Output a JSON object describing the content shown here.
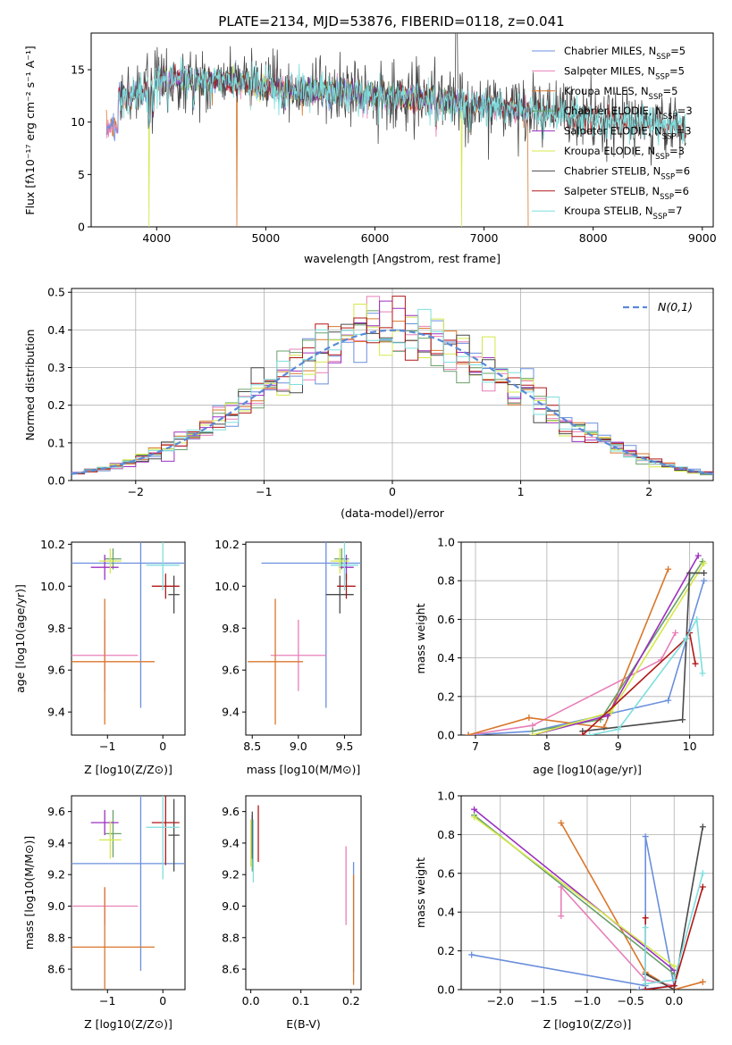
{
  "figure_title": "PLATE=2134, MJD=53876, FIBERID=0118, z=0.041",
  "colors": {
    "Chabrier MILES": "#6a8fdc",
    "Salpeter MILES": "#e87fb8",
    "Kroupa MILES": "#d9772c",
    "Chabrier ELODIE": "#6aa06a",
    "Salpeter ELODIE": "#9b30c0",
    "Kroupa ELODIE": "#d4e84a",
    "Chabrier STELIB": "#4a4a4a",
    "Salpeter STELIB": "#b01818",
    "Kroupa STELIB": "#7fdede",
    "normal_curve": "#5b8ad6"
  },
  "chart_data": [
    {
      "id": "spectrum",
      "type": "line",
      "title": "PLATE=2134, MJD=53876, FIBERID=0118, z=0.041",
      "xlabel": "wavelength [Angstrom, rest frame]",
      "ylabel": "Flux [fλ10⁻¹⁷ erg cm⁻² s⁻¹ A⁻¹]",
      "xlim": [
        3400,
        9100
      ],
      "ylim": [
        0,
        18.5
      ],
      "xticks": [
        4000,
        5000,
        6000,
        7000,
        8000,
        9000
      ],
      "yticks": [
        0,
        5,
        10,
        15
      ],
      "legend_position": "top-right",
      "legend": [
        {
          "label": "Chabrier MILES, N",
          "sub": "SSP",
          "suffix": "=5"
        },
        {
          "label": "Salpeter MILES, N",
          "sub": "SSP",
          "suffix": "=5"
        },
        {
          "label": "Kroupa MILES, N",
          "sub": "SSP",
          "suffix": "=5"
        },
        {
          "label": "Chabrier ELODIE, N",
          "sub": "SSP",
          "suffix": "=3"
        },
        {
          "label": "Salpeter ELODIE, N",
          "sub": "SSP",
          "suffix": "=3"
        },
        {
          "label": "Kroupa ELODIE, N",
          "sub": "SSP",
          "suffix": "=3"
        },
        {
          "label": "Chabrier STELIB, N",
          "sub": "SSP",
          "suffix": "=6"
        },
        {
          "label": "Salpeter STELIB, N",
          "sub": "SSP",
          "suffix": "=6"
        },
        {
          "label": "Kroupa STELIB, N",
          "sub": "SSP",
          "suffix": "=7"
        }
      ],
      "continuum": [
        [
          3650,
          12.5
        ],
        [
          3750,
          12.2
        ],
        [
          3900,
          13.2
        ],
        [
          4000,
          14.0
        ],
        [
          4200,
          14.2
        ],
        [
          4500,
          14.0
        ],
        [
          4800,
          13.8
        ],
        [
          5000,
          13.4
        ],
        [
          5500,
          13.0
        ],
        [
          6000,
          12.6
        ],
        [
          6500,
          12.2
        ],
        [
          7000,
          11.6
        ],
        [
          7500,
          11.0
        ],
        [
          8000,
          10.3
        ],
        [
          8500,
          9.8
        ],
        [
          8850,
          9.5
        ]
      ],
      "range_by_library": {
        "MILES": [
          3540,
          7410
        ],
        "ELODIE": [
          3900,
          6800
        ],
        "STELIB": [
          3650,
          8850
        ]
      }
    },
    {
      "id": "residuals",
      "type": "histogram",
      "xlabel": "(data-model)/error",
      "ylabel": "Normed distribution",
      "xlim": [
        -2.5,
        2.5
      ],
      "ylim": [
        0,
        0.51
      ],
      "xticks": [
        -2,
        -1,
        0,
        1,
        2
      ],
      "yticks": [
        0.0,
        0.1,
        0.2,
        0.3,
        0.4,
        0.5
      ],
      "legend_position": "top-right",
      "legend_label": "N(0,1)",
      "bin_width": 0.1
    },
    {
      "id": "age_vs_Z",
      "type": "scatter",
      "xlabel": "Z [log10(Z/Z⊙)]",
      "ylabel": "age  [log10(age/yr)]",
      "xlim": [
        -1.65,
        0.4
      ],
      "ylim": [
        9.29,
        10.21
      ],
      "xticks": [
        -1,
        0
      ],
      "yticks": [
        9.4,
        9.6,
        9.8,
        10.0,
        10.2
      ],
      "points": [
        {
          "model": "Chabrier MILES",
          "x": -0.4,
          "xerr": 1.55,
          "y": 10.11,
          "yerr": 0.69
        },
        {
          "model": "Salpeter MILES",
          "x": -1.05,
          "xerr": 0.6,
          "y": 9.67,
          "yerr": 0.17
        },
        {
          "model": "Kroupa MILES",
          "x": -1.05,
          "xerr": 0.9,
          "y": 9.64,
          "yerr": 0.3
        },
        {
          "model": "Chabrier ELODIE",
          "x": -0.9,
          "xerr": 0.15,
          "y": 10.13,
          "yerr": 0.05
        },
        {
          "model": "Salpeter ELODIE",
          "x": -1.05,
          "xerr": 0.25,
          "y": 10.09,
          "yerr": 0.06
        },
        {
          "model": "Kroupa ELODIE",
          "x": -0.95,
          "xerr": 0.2,
          "y": 10.12,
          "yerr": 0.06
        },
        {
          "model": "Chabrier STELIB",
          "x": 0.2,
          "xerr": 0.1,
          "y": 9.96,
          "yerr": 0.09
        },
        {
          "model": "Salpeter STELIB",
          "x": 0.05,
          "xerr": 0.25,
          "y": 10.0,
          "yerr": 0.06
        },
        {
          "model": "Kroupa STELIB",
          "x": 0.0,
          "xerr": 0.3,
          "y": 10.1,
          "yerr": 0.12
        }
      ]
    },
    {
      "id": "age_vs_mass",
      "type": "scatter",
      "xlabel": "mass [log10(M/M⊙)]",
      "ylabel": "",
      "xlim": [
        8.43,
        9.68
      ],
      "ylim": [
        9.29,
        10.21
      ],
      "xticks": [
        8.5,
        9.0,
        9.5
      ],
      "yticks": [
        9.4,
        9.6,
        9.8,
        10.0,
        10.2
      ],
      "points": [
        {
          "model": "Chabrier MILES",
          "x": 9.3,
          "xerr": 0.7,
          "y": 10.11,
          "yerr": 0.69
        },
        {
          "model": "Salpeter MILES",
          "x": 9.0,
          "xerr": 0.3,
          "y": 9.67,
          "yerr": 0.17
        },
        {
          "model": "Kroupa MILES",
          "x": 8.75,
          "xerr": 0.3,
          "y": 9.64,
          "yerr": 0.3
        },
        {
          "model": "Chabrier ELODIE",
          "x": 9.47,
          "xerr": 0.08,
          "y": 10.13,
          "yerr": 0.05
        },
        {
          "model": "Salpeter ELODIE",
          "x": 9.52,
          "xerr": 0.08,
          "y": 10.09,
          "yerr": 0.06
        },
        {
          "model": "Kroupa ELODIE",
          "x": 9.45,
          "xerr": 0.1,
          "y": 10.12,
          "yerr": 0.06
        },
        {
          "model": "Chabrier STELIB",
          "x": 9.45,
          "xerr": 0.15,
          "y": 9.96,
          "yerr": 0.09
        },
        {
          "model": "Salpeter STELIB",
          "x": 9.52,
          "xerr": 0.1,
          "y": 10.0,
          "yerr": 0.06
        },
        {
          "model": "Kroupa STELIB",
          "x": 9.5,
          "xerr": 0.15,
          "y": 10.1,
          "yerr": 0.12
        }
      ]
    },
    {
      "id": "massweight_vs_age",
      "type": "line",
      "xlabel": "age  [log10(age/yr)]",
      "ylabel": "mass weight",
      "xlim": [
        6.8,
        10.33
      ],
      "ylim": [
        0,
        1.0
      ],
      "xticks": [
        7,
        8,
        9,
        10
      ],
      "yticks": [
        0.0,
        0.2,
        0.4,
        0.6,
        0.8,
        1.0
      ],
      "series": [
        {
          "model": "Chabrier MILES",
          "x": [
            6.9,
            7.8,
            9.7,
            10.2
          ],
          "y": [
            0.0,
            0.02,
            0.18,
            0.8
          ]
        },
        {
          "model": "Salpeter MILES",
          "x": [
            6.9,
            7.8,
            9.6,
            9.8
          ],
          "y": [
            0.0,
            0.05,
            0.39,
            0.53
          ]
        },
        {
          "model": "Kroupa MILES",
          "x": [
            6.9,
            7.75,
            8.8,
            9.7
          ],
          "y": [
            0.0,
            0.09,
            0.04,
            0.86
          ]
        },
        {
          "model": "Chabrier ELODIE",
          "x": [
            7.8,
            8.75,
            10.18
          ],
          "y": [
            0.02,
            0.08,
            0.9
          ]
        },
        {
          "model": "Salpeter ELODIE",
          "x": [
            7.8,
            8.85,
            10.12
          ],
          "y": [
            0.0,
            0.1,
            0.93
          ]
        },
        {
          "model": "Kroupa ELODIE",
          "x": [
            7.8,
            8.9,
            10.2
          ],
          "y": [
            0.0,
            0.12,
            0.89
          ]
        },
        {
          "model": "Chabrier STELIB",
          "x": [
            8.5,
            9.9,
            10.0,
            10.2
          ],
          "y": [
            0.02,
            0.08,
            0.84,
            0.84
          ]
        },
        {
          "model": "Salpeter STELIB",
          "x": [
            8.5,
            9.95,
            10.0,
            10.08
          ],
          "y": [
            0.0,
            0.5,
            0.53,
            0.37
          ]
        },
        {
          "model": "Kroupa STELIB",
          "x": [
            8.6,
            9.0,
            9.95,
            10.1,
            10.18
          ],
          "y": [
            0.0,
            0.03,
            0.5,
            0.6,
            0.32
          ]
        }
      ]
    },
    {
      "id": "mass_vs_Z",
      "type": "scatter",
      "xlabel": "Z [log10(Z/Z⊙)]",
      "ylabel": "mass [log10(M/M⊙)]",
      "xlim": [
        -1.65,
        0.4
      ],
      "ylim": [
        8.47,
        9.7
      ],
      "xticks": [
        -1,
        0
      ],
      "yticks": [
        8.6,
        8.8,
        9.0,
        9.2,
        9.4,
        9.6
      ],
      "points": [
        {
          "model": "Chabrier MILES",
          "x": -0.4,
          "xerr": 1.55,
          "y": 9.27,
          "yerr": 0.68
        },
        {
          "model": "Salpeter MILES",
          "x": -1.05,
          "xerr": 0.6,
          "y": 9.0,
          "yerr": 0.12
        },
        {
          "model": "Kroupa MILES",
          "x": -1.05,
          "xerr": 0.9,
          "y": 8.74,
          "yerr": 0.38
        },
        {
          "model": "Chabrier ELODIE",
          "x": -0.9,
          "xerr": 0.15,
          "y": 9.46,
          "yerr": 0.15
        },
        {
          "model": "Salpeter ELODIE",
          "x": -1.05,
          "xerr": 0.25,
          "y": 9.53,
          "yerr": 0.08
        },
        {
          "model": "Kroupa ELODIE",
          "x": -0.95,
          "xerr": 0.2,
          "y": 9.42,
          "yerr": 0.12
        },
        {
          "model": "Chabrier STELIB",
          "x": 0.2,
          "xerr": 0.1,
          "y": 9.45,
          "yerr": 0.23
        },
        {
          "model": "Salpeter STELIB",
          "x": 0.05,
          "xerr": 0.25,
          "y": 9.53,
          "yerr": 0.27
        },
        {
          "model": "Kroupa STELIB",
          "x": 0.0,
          "xerr": 0.3,
          "y": 9.5,
          "yerr": 0.33
        }
      ]
    },
    {
      "id": "mass_vs_EBV",
      "type": "scatter",
      "xlabel": "E(B-V)",
      "ylabel": "",
      "xlim": [
        -0.01,
        0.22
      ],
      "ylim": [
        8.47,
        9.7
      ],
      "xticks": [
        0.0,
        0.1,
        0.2
      ],
      "yticks": [
        8.6,
        8.8,
        9.0,
        9.2,
        9.4,
        9.6
      ],
      "points": [
        {
          "model": "Chabrier MILES",
          "x": 0.205,
          "xerr": 0.0,
          "y": 8.93,
          "yerr": 0.35
        },
        {
          "model": "Salpeter MILES",
          "x": 0.19,
          "xerr": 0.0,
          "y": 9.13,
          "yerr": 0.25
        },
        {
          "model": "Kroupa MILES",
          "x": 0.205,
          "xerr": 0.0,
          "y": 8.85,
          "yerr": 0.35
        },
        {
          "model": "Chabrier ELODIE",
          "x": 0.003,
          "xerr": 0.0,
          "y": 9.4,
          "yerr": 0.18
        },
        {
          "model": "Salpeter ELODIE",
          "x": 0.003,
          "xerr": 0.0,
          "y": 9.45,
          "yerr": 0.12
        },
        {
          "model": "Kroupa ELODIE",
          "x": 0.0,
          "xerr": 0.0,
          "y": 9.4,
          "yerr": 0.15
        },
        {
          "model": "Chabrier STELIB",
          "x": 0.003,
          "xerr": 0.0,
          "y": 9.45,
          "yerr": 0.15
        },
        {
          "model": "Salpeter STELIB",
          "x": 0.015,
          "xerr": 0.0,
          "y": 9.46,
          "yerr": 0.18
        },
        {
          "model": "Kroupa STELIB",
          "x": 0.005,
          "xerr": 0.0,
          "y": 9.35,
          "yerr": 0.2
        }
      ]
    },
    {
      "id": "massweight_vs_Z",
      "type": "line",
      "xlabel": "Z [log10(Z/Z⊙)]",
      "ylabel": "mass weight",
      "xlim": [
        -2.45,
        0.45
      ],
      "ylim": [
        0,
        1.0
      ],
      "xticks": [
        -2.0,
        -1.5,
        -1.0,
        -0.5,
        0.0
      ],
      "yticks": [
        0.0,
        0.2,
        0.4,
        0.6,
        0.8,
        1.0
      ],
      "series": [
        {
          "model": "Chabrier MILES",
          "x": [
            -2.33,
            -0.33,
            -0.33,
            0.0,
            -0.4
          ],
          "y": [
            0.18,
            0.02,
            0.79,
            0.02,
            0.0
          ]
        },
        {
          "model": "Salpeter MILES",
          "x": [
            -1.3,
            -1.3,
            -0.33,
            0.0
          ],
          "y": [
            0.38,
            0.53,
            0.05,
            0.02
          ]
        },
        {
          "model": "Kroupa MILES",
          "x": [
            -1.3,
            -0.33,
            0.0,
            0.33
          ],
          "y": [
            0.86,
            0.09,
            0.0,
            0.04
          ]
        },
        {
          "model": "Chabrier ELODIE",
          "x": [
            -2.3,
            0.0
          ],
          "y": [
            0.9,
            0.08
          ]
        },
        {
          "model": "Salpeter ELODIE",
          "x": [
            -2.3,
            0.0
          ],
          "y": [
            0.93,
            0.1
          ]
        },
        {
          "model": "Kroupa ELODIE",
          "x": [
            -2.3,
            0.0
          ],
          "y": [
            0.89,
            0.12
          ]
        },
        {
          "model": "Chabrier STELIB",
          "x": [
            -0.33,
            0.0,
            0.33
          ],
          "y": [
            0.08,
            0.0,
            0.84
          ]
        },
        {
          "model": "Salpeter STELIB",
          "x": [
            -0.33,
            -0.33,
            0.0,
            0.33
          ],
          "y": [
            0.37,
            0.0,
            0.02,
            0.53
          ]
        },
        {
          "model": "Kroupa STELIB",
          "x": [
            -0.33,
            -0.33,
            0.0,
            0.33
          ],
          "y": [
            0.32,
            0.03,
            0.05,
            0.6
          ]
        }
      ]
    }
  ]
}
